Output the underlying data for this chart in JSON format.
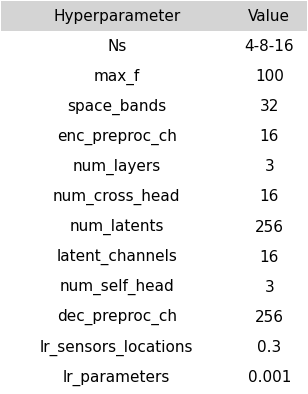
{
  "headers": [
    "Hyperparameter",
    "Value"
  ],
  "rows": [
    [
      "Ns",
      "4-8-16"
    ],
    [
      "max_f",
      "100"
    ],
    [
      "space_bands",
      "32"
    ],
    [
      "enc_preproc_ch",
      "16"
    ],
    [
      "num_layers",
      "3"
    ],
    [
      "num_cross_head",
      "16"
    ],
    [
      "num_latents",
      "256"
    ],
    [
      "latent_channels",
      "16"
    ],
    [
      "num_self_head",
      "3"
    ],
    [
      "dec_preproc_ch",
      "256"
    ],
    [
      "lr_sensors_locations",
      "0.3"
    ],
    [
      "lr_parameters",
      "0.001"
    ]
  ],
  "special_rows": {
    "lr_sensors_locations": {
      "prefix": "lr",
      "subscript": "sensors_locations"
    },
    "lr_parameters": {
      "prefix": "lr",
      "subscript": "parameters"
    }
  },
  "bg_color": "#ffffff",
  "header_bg": "#e8e8e8",
  "text_color": "#000000",
  "font_size": 11,
  "header_font_size": 11
}
